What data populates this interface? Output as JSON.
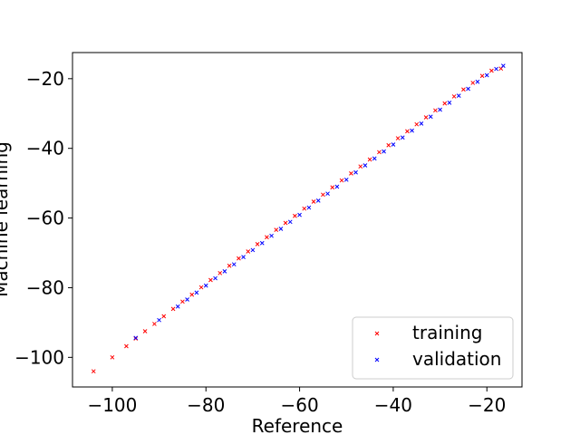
{
  "chart_data": {
    "type": "scatter",
    "title": "",
    "xlabel": "Reference",
    "ylabel": "Machine learning",
    "xlim": [
      -108.5,
      -12.5
    ],
    "ylim": [
      -108.5,
      -12.5
    ],
    "xticks": [
      -100,
      -80,
      -60,
      -40,
      -20
    ],
    "yticks": [
      -100,
      -80,
      -60,
      -40,
      -20
    ],
    "xtick_labels": [
      "−100",
      "−80",
      "−60",
      "−40",
      "−20"
    ],
    "ytick_labels": [
      "−100",
      "−80",
      "−60",
      "−40",
      "−20"
    ],
    "grid": false,
    "legend_position": "lower-right",
    "marker": "x",
    "series": [
      {
        "name": "training",
        "color": "#ff0000",
        "x": [
          -104,
          -100,
          -97,
          -95,
          -93,
          -91,
          -89,
          -87,
          -85,
          -83,
          -81,
          -79,
          -77,
          -75,
          -73,
          -71,
          -69,
          -67,
          -65,
          -63,
          -61,
          -59,
          -57,
          -55,
          -53,
          -51,
          -49,
          -47,
          -45,
          -43,
          -41,
          -39,
          -37,
          -35,
          -33,
          -31,
          -29,
          -27,
          -25,
          -23,
          -21,
          -19,
          -17
        ],
        "y": [
          -104,
          -100,
          -96.8,
          -94.6,
          -92.5,
          -90.4,
          -88.2,
          -86.1,
          -84.0,
          -82.0,
          -79.9,
          -77.8,
          -75.8,
          -73.7,
          -71.6,
          -69.6,
          -67.5,
          -65.5,
          -63.4,
          -61.4,
          -59.4,
          -57.3,
          -55.3,
          -53.3,
          -51.2,
          -49.2,
          -47.2,
          -45.2,
          -43.2,
          -41.1,
          -39.1,
          -37.1,
          -35.1,
          -33.1,
          -31.1,
          -29.1,
          -27.1,
          -25.1,
          -23.1,
          -21.2,
          -19.2,
          -17.7,
          -17.1
        ]
      },
      {
        "name": "validation",
        "color": "#0000ff",
        "x": [
          -95,
          -90,
          -86,
          -84,
          -82,
          -80,
          -78,
          -76,
          -74,
          -72,
          -70,
          -68,
          -66,
          -64,
          -62,
          -60,
          -58,
          -56,
          -54,
          -52,
          -50,
          -48,
          -46,
          -44,
          -42,
          -40,
          -38,
          -36,
          -34,
          -32,
          -30,
          -28,
          -26,
          -24,
          -22,
          -20,
          -18,
          -16.5
        ],
        "y": [
          -94.4,
          -89.3,
          -85.4,
          -83.4,
          -81.4,
          -79.4,
          -77.3,
          -75.3,
          -73.3,
          -71.2,
          -69.2,
          -67.2,
          -65.1,
          -63.1,
          -61.1,
          -59.1,
          -57.0,
          -55.0,
          -53.0,
          -51.0,
          -49.0,
          -46.9,
          -44.9,
          -42.9,
          -40.9,
          -38.9,
          -36.9,
          -34.9,
          -32.9,
          -30.9,
          -28.9,
          -26.9,
          -24.9,
          -22.9,
          -20.9,
          -19.0,
          -17.2,
          -16.3
        ]
      }
    ]
  }
}
